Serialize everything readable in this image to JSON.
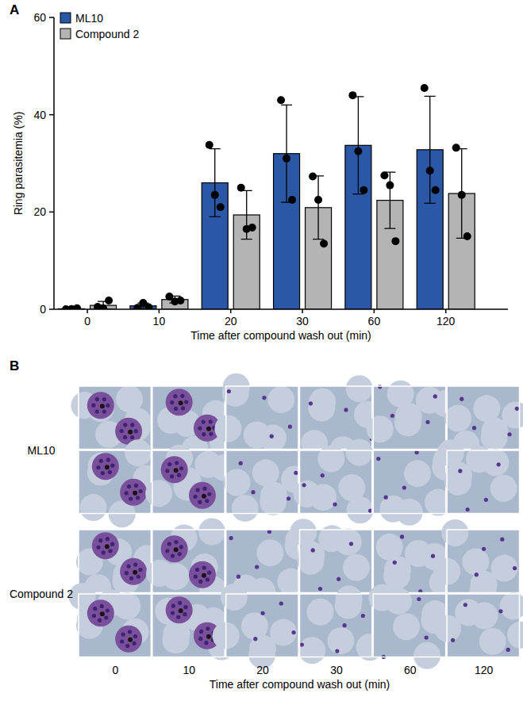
{
  "chart_data": {
    "type": "bar",
    "x_label": "Time after compound wash out (min)",
    "y_label": "Ring parasitemia (%)",
    "categories": [
      "0",
      "10",
      "20",
      "30",
      "60",
      "120"
    ],
    "series": [
      {
        "name": "ML10",
        "color": "#2b58a6",
        "values": [
          0.1,
          0.7,
          26,
          32,
          33.7,
          32.8
        ],
        "errors": [
          0.1,
          0.6,
          7,
          10,
          10,
          11
        ],
        "points": [
          [
            0,
            0.05,
            0.2
          ],
          [
            0.3,
            1.3,
            0.4
          ],
          [
            33.8,
            23.5,
            21
          ],
          [
            43,
            31,
            22.5
          ],
          [
            44,
            32.5,
            24.5
          ],
          [
            45.5,
            28.5,
            24.5
          ]
        ]
      },
      {
        "name": "Compound 2",
        "color": "#b4b4b4",
        "values": [
          0.8,
          2,
          19.4,
          20.9,
          22.4,
          23.8
        ],
        "errors": [
          0.8,
          0.7,
          5,
          6.5,
          5.8,
          9.2
        ],
        "points": [
          [
            0.5,
            0.2,
            1.8
          ],
          [
            2.6,
            1.6,
            1.8
          ],
          [
            25,
            16.5,
            16.8
          ],
          [
            27.3,
            22.5,
            13.5
          ],
          [
            27.5,
            25.5,
            14
          ],
          [
            33.2,
            23.5,
            15
          ]
        ]
      }
    ],
    "ylim": [
      0,
      60
    ],
    "yticks": [
      0,
      20,
      40,
      60
    ],
    "grid": false,
    "legend": "top-left"
  },
  "figure": {
    "panel_labels": [
      "A",
      "B"
    ],
    "micrographs": {
      "rows": [
        "ML10",
        "Compound 2"
      ],
      "columns": [
        "0",
        "10",
        "20",
        "30",
        "60",
        "120"
      ],
      "x_label": "Time after compound wash out (min)"
    }
  }
}
